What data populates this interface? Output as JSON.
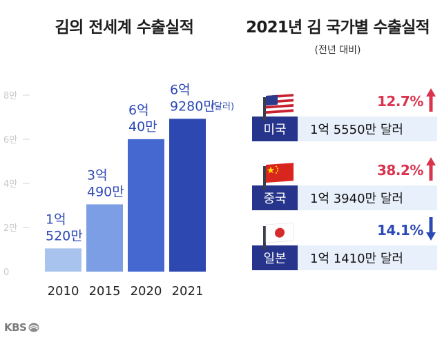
{
  "chart_data": {
    "type": "bar",
    "title": "김의 전세계 수출실적",
    "categories": [
      "2010",
      "2015",
      "2020",
      "2021"
    ],
    "values": [
      1.052,
      3.049,
      6.004,
      6.928
    ],
    "value_unit": "억 달러",
    "ylim": [
      0,
      8
    ],
    "yticks": [
      {
        "value": 0,
        "label": "0"
      },
      {
        "value": 2,
        "label": "2만"
      },
      {
        "value": 4,
        "label": "4만"
      },
      {
        "value": 6,
        "label": "6만"
      },
      {
        "value": 8,
        "label": "8만"
      }
    ],
    "data_labels": [
      [
        "1억",
        "520만"
      ],
      [
        "3억",
        "490만"
      ],
      [
        "6억",
        "40만"
      ],
      [
        "6억",
        "9280만"
      ]
    ],
    "last_label_unit": "(달러)",
    "bar_colors": [
      "#a9c3ef",
      "#7c9ee4",
      "#4468cf",
      "#2d48b0"
    ]
  },
  "right_panel": {
    "title": "2021년 김 국가별 수출실적",
    "subtitle": "(전년 대비)",
    "rows": [
      {
        "country": "미국",
        "flag": "us-flag",
        "amount": "1억 5550만 달러",
        "change": "12.7%",
        "direction": "up",
        "color": "#d9334e"
      },
      {
        "country": "중국",
        "flag": "china-flag",
        "amount": "1억 3940만 달러",
        "change": "38.2%",
        "direction": "up",
        "color": "#d9334e"
      },
      {
        "country": "일본",
        "flag": "japan-flag",
        "amount": "1억 1410만 달러",
        "change": "14.1%",
        "direction": "down",
        "color": "#2c4ab5"
      }
    ]
  },
  "footer": {
    "logo": "KBS"
  }
}
